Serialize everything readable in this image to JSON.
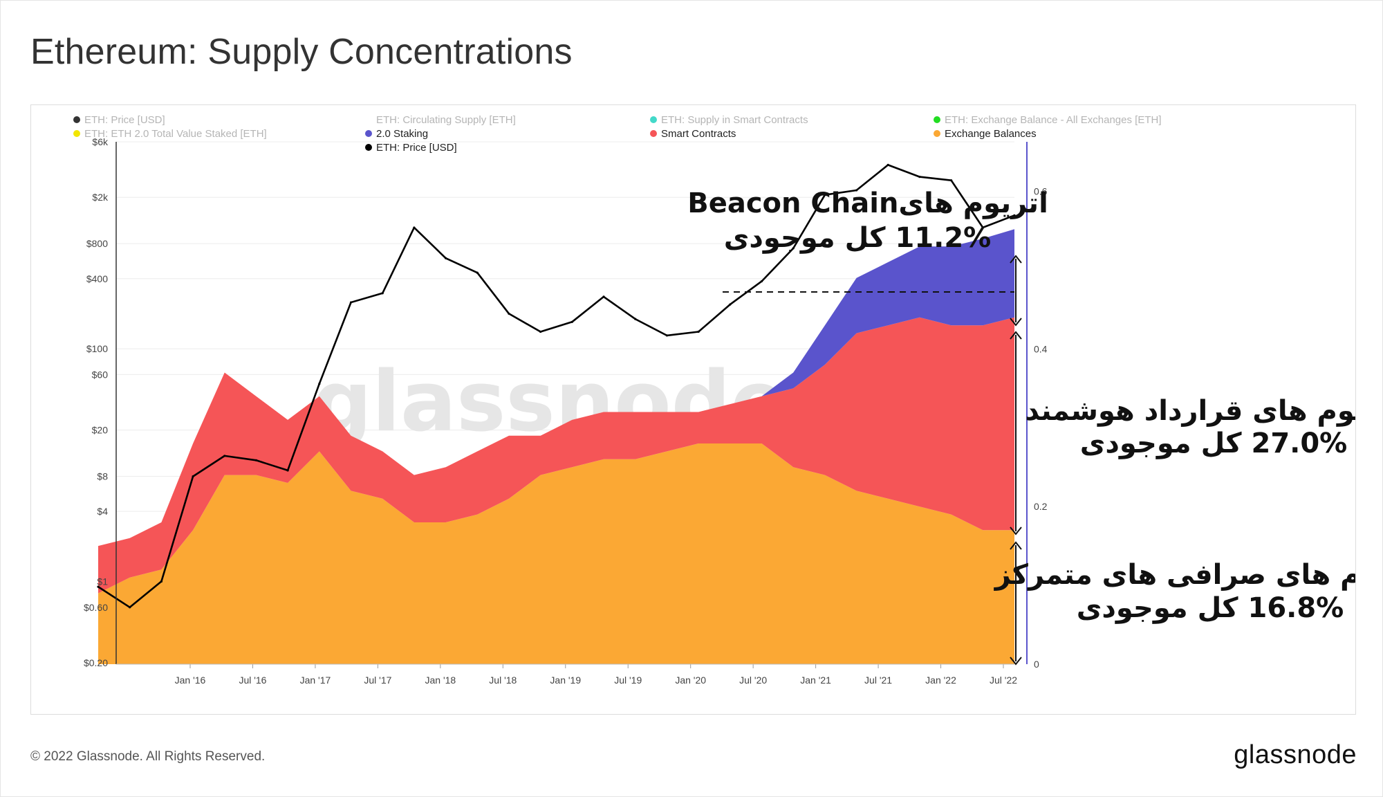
{
  "page": {
    "title": "Ethereum: Supply Concentrations",
    "copyright": "© 2022 Glassnode. All Rights Reserved.",
    "brand": "glassnode",
    "watermark": "glassnode"
  },
  "colors": {
    "exchange": "#FBA834",
    "smart_contracts": "#F55557",
    "staking": "#5A54CC",
    "price": "#000000",
    "right_axis": "#5A54CC",
    "grid": "#ececec"
  },
  "legend": [
    {
      "label": "ETH: Price [USD]",
      "color": "#333333",
      "faded": true
    },
    {
      "label": "ETH: Circulating Supply [ETH]",
      "color": "#ffffff",
      "faded": true
    },
    {
      "label": "ETH: Supply in Smart Contracts",
      "color": "#43D9C9",
      "faded": true
    },
    {
      "label": "ETH: Exchange Balance - All Exchanges [ETH]",
      "color": "#22DD22",
      "faded": true
    },
    {
      "label": "ETH: ETH 2.0 Total Value Staked [ETH]",
      "color": "#F2E600",
      "faded": true
    },
    {
      "label": "2.0 Staking",
      "color": "#5A54CC",
      "faded": false
    },
    {
      "label": "Smart Contracts",
      "color": "#F55557",
      "faded": false
    },
    {
      "label": "Exchange Balances",
      "color": "#FBA834",
      "faded": false
    },
    {
      "label": "ETH: Price [USD]",
      "color": "#000000",
      "faded": false
    }
  ],
  "annotations": [
    {
      "line1": "اتریوم های‌Beacon Chain",
      "line2": "11.2% کل موجودی"
    },
    {
      "line1": "اتریوم های قرارداد هوشمند",
      "line2": "27.0%  کل موجودی"
    },
    {
      "line1": "اتریوم های صرافی های متمرکز",
      "line2": "16.8% کل موجودی"
    }
  ],
  "chart_data": {
    "type": "area",
    "title": "Ethereum: Supply Concentrations",
    "x_tick_labels": [
      "Jan '16",
      "Jul '16",
      "Jan '17",
      "Jul '17",
      "Jan '18",
      "Jul '18",
      "Jan '19",
      "Jul '19",
      "Jan '20",
      "Jul '20",
      "Jan '21",
      "Jul '21",
      "Jan '22",
      "Jul '22"
    ],
    "left_axis": {
      "scale": "log",
      "unit": "USD",
      "tick_labels": [
        "$0.20",
        "$0.60",
        "$1",
        "$4",
        "$8",
        "$20",
        "$60",
        "$100",
        "$400",
        "$800",
        "$2k",
        "$6k"
      ],
      "tick_values": [
        0.2,
        0.6,
        1,
        4,
        8,
        20,
        60,
        100,
        400,
        800,
        2000,
        6000
      ]
    },
    "right_axis": {
      "scale": "linear",
      "tick_labels": [
        "0",
        "0.2",
        "0.4",
        "0.6"
      ],
      "range": [
        0,
        0.69
      ]
    },
    "x": [
      "2015-08",
      "2015-10",
      "2016-01",
      "2016-04",
      "2016-07",
      "2016-10",
      "2017-01",
      "2017-04",
      "2017-07",
      "2017-10",
      "2018-01",
      "2018-04",
      "2018-07",
      "2018-10",
      "2019-01",
      "2019-04",
      "2019-07",
      "2019-10",
      "2020-01",
      "2020-04",
      "2020-07",
      "2020-10",
      "2021-01",
      "2021-04",
      "2021-07",
      "2021-10",
      "2022-01",
      "2022-04",
      "2022-07",
      "2022-09"
    ],
    "series": [
      {
        "name": "Exchange Balances",
        "axis": "right",
        "stacked": true,
        "values": [
          0.09,
          0.11,
          0.12,
          0.17,
          0.24,
          0.24,
          0.23,
          0.27,
          0.22,
          0.21,
          0.18,
          0.18,
          0.19,
          0.21,
          0.24,
          0.25,
          0.26,
          0.26,
          0.27,
          0.28,
          0.28,
          0.28,
          0.25,
          0.24,
          0.22,
          0.21,
          0.2,
          0.19,
          0.17,
          0.17
        ]
      },
      {
        "name": "Smart Contracts",
        "axis": "right",
        "stacked": true,
        "values": [
          0.06,
          0.05,
          0.06,
          0.11,
          0.13,
          0.1,
          0.08,
          0.07,
          0.07,
          0.06,
          0.06,
          0.07,
          0.08,
          0.08,
          0.05,
          0.06,
          0.06,
          0.06,
          0.05,
          0.04,
          0.05,
          0.06,
          0.1,
          0.14,
          0.2,
          0.22,
          0.24,
          0.24,
          0.26,
          0.27
        ]
      },
      {
        "name": "2.0 Staking",
        "axis": "right",
        "stacked": true,
        "values": [
          0,
          0,
          0,
          0,
          0,
          0,
          0,
          0,
          0,
          0,
          0,
          0,
          0,
          0,
          0,
          0,
          0,
          0,
          0,
          0,
          0,
          0,
          0.02,
          0.05,
          0.07,
          0.08,
          0.09,
          0.1,
          0.11,
          0.112
        ]
      },
      {
        "name": "ETH: Price [USD]",
        "axis": "left",
        "values": [
          0.9,
          0.6,
          1.0,
          8,
          12,
          11,
          9,
          50,
          250,
          300,
          1100,
          600,
          450,
          200,
          140,
          170,
          280,
          180,
          130,
          140,
          240,
          380,
          730,
          2100,
          2300,
          3800,
          3000,
          2800,
          1100,
          1400
        ]
      }
    ],
    "grid": true,
    "legend_position": "top"
  }
}
